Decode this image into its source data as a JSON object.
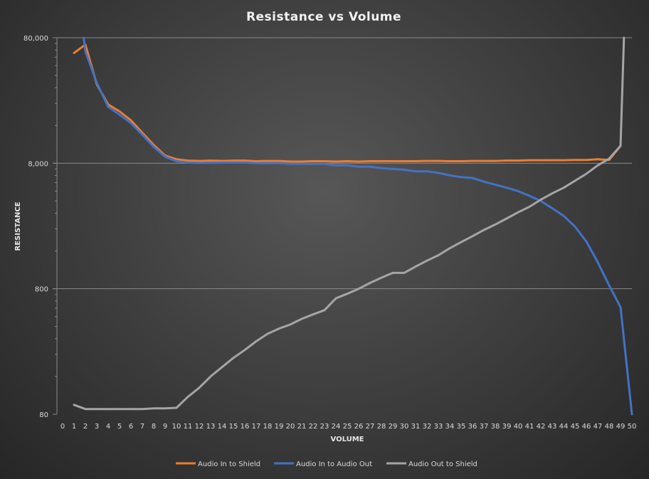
{
  "chart_data": {
    "type": "line",
    "title": "Resistance  vs Volume",
    "xlabel": "VOLUME",
    "ylabel": "RESISTANCE",
    "y_scale": "log",
    "ylim": [
      80,
      80000
    ],
    "xlim": [
      0,
      50
    ],
    "y_ticks": [
      80,
      800,
      8000,
      80000
    ],
    "y_tick_labels": [
      "80",
      "800",
      "8,000",
      "80,000"
    ],
    "x_ticks": [
      0,
      1,
      2,
      3,
      4,
      5,
      6,
      7,
      8,
      9,
      10,
      11,
      12,
      13,
      14,
      15,
      16,
      17,
      18,
      19,
      20,
      21,
      22,
      23,
      24,
      25,
      26,
      27,
      28,
      29,
      30,
      31,
      32,
      33,
      34,
      35,
      36,
      37,
      38,
      39,
      40,
      41,
      42,
      43,
      44,
      45,
      46,
      47,
      48,
      49,
      50
    ],
    "grid": "horizontal",
    "legend_position": "bottom",
    "series": [
      {
        "name": "Audio In to Shield",
        "color": "#ed7d31",
        "x": [
          1,
          2,
          3,
          4,
          5,
          6,
          7,
          8,
          9,
          10,
          11,
          12,
          13,
          14,
          15,
          16,
          17,
          18,
          19,
          20,
          21,
          22,
          23,
          24,
          25,
          26,
          27,
          28,
          29,
          30,
          31,
          32,
          33,
          34,
          35,
          36,
          37,
          38,
          39,
          40,
          41,
          42,
          43,
          44,
          45,
          46,
          47,
          48,
          49
        ],
        "y": [
          60500,
          70500,
          34000,
          23500,
          20700,
          17600,
          14000,
          11200,
          9200,
          8600,
          8400,
          8350,
          8400,
          8350,
          8400,
          8400,
          8300,
          8350,
          8350,
          8250,
          8250,
          8300,
          8300,
          8250,
          8300,
          8250,
          8300,
          8300,
          8300,
          8300,
          8300,
          8350,
          8350,
          8300,
          8300,
          8350,
          8350,
          8350,
          8400,
          8400,
          8450,
          8450,
          8450,
          8450,
          8500,
          8500,
          8600,
          8500,
          11000
        ]
      },
      {
        "name": "Audio In to Audio Out",
        "color": "#4472c4",
        "x": [
          1.85,
          2,
          3,
          4,
          5,
          6,
          7,
          8,
          9,
          10,
          11,
          12,
          13,
          14,
          15,
          16,
          17,
          18,
          19,
          20,
          21,
          22,
          23,
          24,
          25,
          26,
          27,
          28,
          29,
          30,
          31,
          32,
          33,
          34,
          35,
          36,
          37,
          38,
          39,
          40,
          41,
          42,
          43,
          44,
          45,
          46,
          47,
          48,
          49,
          50
        ],
        "y": [
          80000,
          62000,
          35000,
          22500,
          19500,
          16700,
          13500,
          10800,
          9000,
          8300,
          8100,
          8050,
          8050,
          8100,
          8100,
          8100,
          8000,
          8000,
          8000,
          7900,
          7900,
          7900,
          7900,
          7700,
          7700,
          7500,
          7500,
          7300,
          7200,
          7100,
          6900,
          6900,
          6700,
          6400,
          6200,
          6100,
          5700,
          5400,
          5100,
          4800,
          4400,
          4000,
          3500,
          3050,
          2500,
          1900,
          1300,
          850,
          570,
          80
        ]
      },
      {
        "name": "Audio Out to Shield",
        "color": "#a5a5a5",
        "x": [
          1,
          2,
          3,
          4,
          5,
          6,
          7,
          8,
          9,
          10,
          11,
          12,
          13,
          14,
          15,
          16,
          17,
          18,
          19,
          20,
          21,
          22,
          23,
          24,
          25,
          26,
          27,
          28,
          29,
          30,
          31,
          32,
          33,
          34,
          35,
          36,
          37,
          38,
          39,
          40,
          41,
          42,
          43,
          44,
          45,
          46,
          47,
          48,
          49,
          49.3
        ],
        "y": [
          95,
          88,
          88,
          88,
          88,
          88,
          88,
          89,
          89,
          90,
          110,
          130,
          160,
          190,
          225,
          260,
          305,
          350,
          385,
          415,
          460,
          500,
          540,
          670,
          730,
          800,
          890,
          980,
          1070,
          1070,
          1200,
          1340,
          1480,
          1680,
          1880,
          2100,
          2350,
          2600,
          2900,
          3250,
          3600,
          4100,
          4600,
          5100,
          5800,
          6600,
          7700,
          8700,
          11000,
          80000
        ]
      }
    ]
  }
}
